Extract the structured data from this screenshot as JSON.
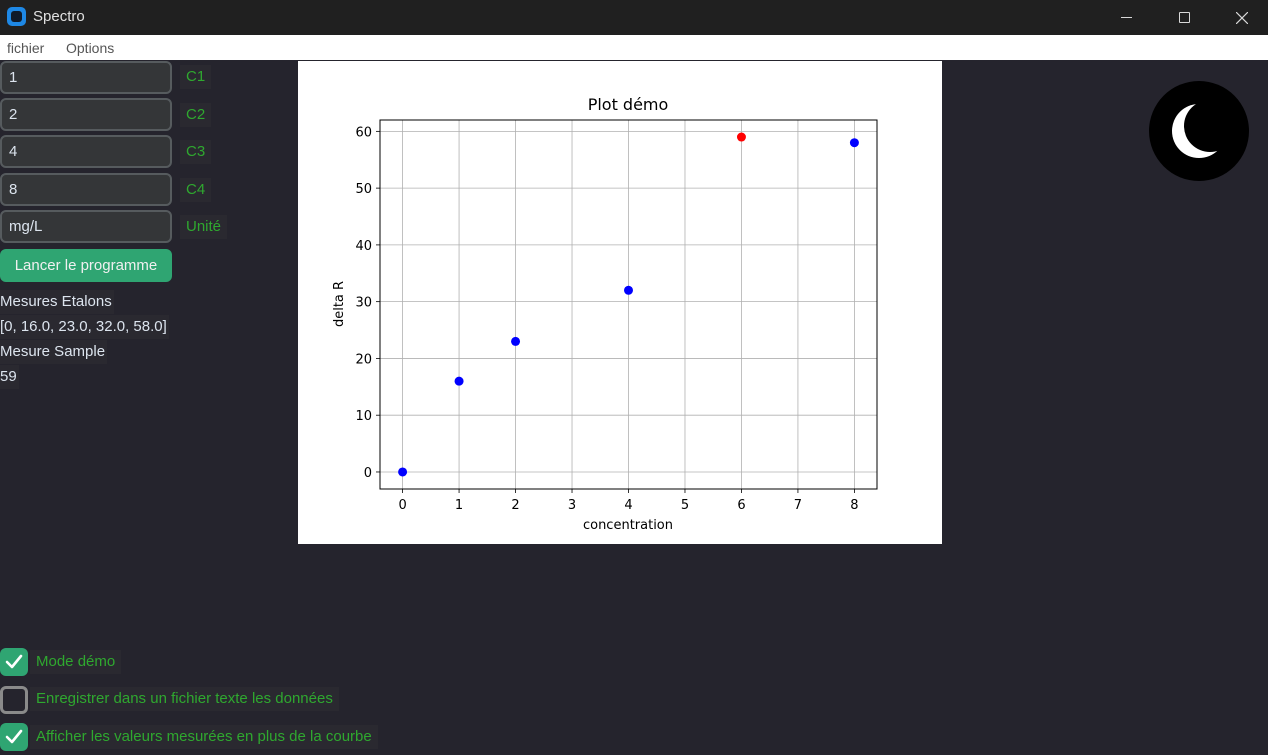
{
  "window": {
    "title": "Spectro",
    "icons": [
      "app-icon",
      "minimize-icon",
      "maximize-icon",
      "close-icon"
    ]
  },
  "menu": {
    "fichier": "fichier",
    "options": "Options"
  },
  "inputs": [
    {
      "value": "1",
      "label": "C1"
    },
    {
      "value": "2",
      "label": "C2"
    },
    {
      "value": "4",
      "label": "C3"
    },
    {
      "value": "8",
      "label": "C4"
    },
    {
      "value": "mg/L",
      "label": "Unité"
    }
  ],
  "run_button": "Lancer le programme",
  "measures": {
    "etalons_title": "Mesures Etalons",
    "etalons_values": "[0, 16.0, 23.0, 32.0, 58.0]",
    "sample_title": "Mesure Sample",
    "sample_value": "59"
  },
  "checkboxes": [
    {
      "label": "Mode démo",
      "checked": true
    },
    {
      "label": "Enregistrer dans un fichier texte les données",
      "checked": false
    },
    {
      "label": "Afficher les valeurs mesurées en plus de la courbe",
      "checked": true
    }
  ],
  "theme_icon": "moon-icon",
  "colors": {
    "accent": "#2fa572",
    "label_green": "#2fa82f",
    "standard_point": "#0000ff",
    "sample_point": "#ff0000"
  },
  "chart_data": {
    "type": "scatter",
    "title": "Plot démo",
    "xlabel": "concentration",
    "ylabel": "delta R",
    "xlim": [
      -0.4,
      8.4
    ],
    "ylim": [
      -3,
      62
    ],
    "x_ticks": [
      0,
      1,
      2,
      3,
      4,
      5,
      6,
      7,
      8
    ],
    "y_ticks": [
      0,
      10,
      20,
      30,
      40,
      50,
      60
    ],
    "grid": true,
    "series": [
      {
        "points": [
          [
            0,
            0
          ],
          [
            1,
            16
          ],
          [
            2,
            23
          ],
          [
            4,
            32
          ],
          [
            8,
            58
          ]
        ],
        "color": "#0000ff"
      },
      {
        "points": [
          [
            6,
            59
          ]
        ],
        "color": "#ff0000"
      }
    ]
  }
}
